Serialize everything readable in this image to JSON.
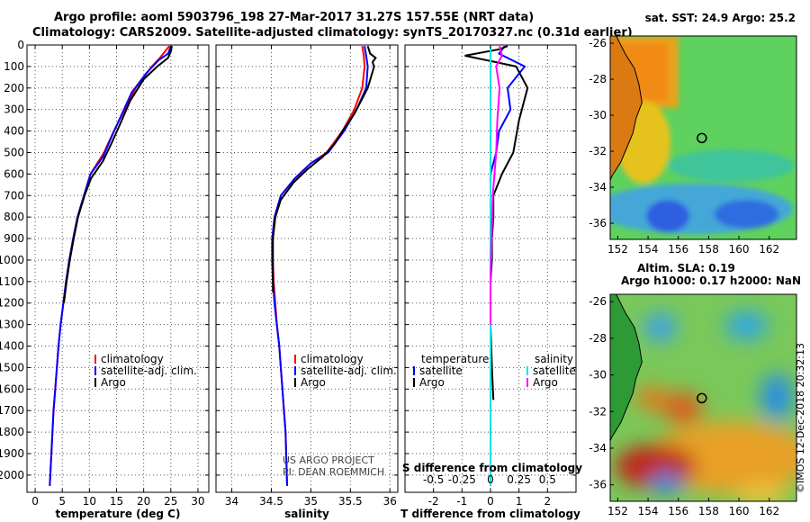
{
  "header": {
    "title_line1": "Argo profile: aoml 5903796_198 27-Mar-2017 31.27S 157.55E (NRT data)",
    "title_line2": "Climatology: CARS2009. Satellite-adjusted climatology: synTS_20170327.nc (0.31d earlier)"
  },
  "colors": {
    "climatology": "#ff0000",
    "satellite": "#0000ff",
    "argo": "#000000",
    "s_satellite": "#00e5e5",
    "s_argo": "#ff00ff"
  },
  "chart_data": [
    {
      "type": "line",
      "xlabel": "temperature (deg C)",
      "ylabel": "",
      "xlim": [
        -1.5,
        32
      ],
      "ylim": [
        2080,
        0
      ],
      "xticks": [
        0,
        5,
        10,
        15,
        20,
        25,
        30
      ],
      "yticks": [
        0,
        100,
        200,
        300,
        400,
        500,
        600,
        700,
        800,
        900,
        1000,
        1100,
        1200,
        1300,
        1400,
        1500,
        1600,
        1700,
        1800,
        1900,
        2000
      ],
      "legend": [
        "climatology",
        "satellite-adj. clim.",
        "Argo"
      ],
      "series": [
        {
          "name": "climatology",
          "color": "#ff0000",
          "x": [
            24.7,
            23.0,
            21.5,
            18.5,
            16.5,
            14.5,
            12.7,
            10.2,
            9.0,
            7.8,
            7.0,
            6.3,
            5.7,
            5.2,
            4.7,
            4.3,
            4.0,
            3.7,
            3.4,
            3.2,
            3.0,
            2.7
          ],
          "y": [
            5,
            60,
            100,
            200,
            300,
            400,
            500,
            600,
            700,
            800,
            900,
            1000,
            1100,
            1200,
            1300,
            1400,
            1500,
            1600,
            1700,
            1800,
            1900,
            2050
          ]
        },
        {
          "name": "satellite-adj. clim.",
          "color": "#0000ff",
          "x": [
            25.0,
            24.5,
            22.8,
            20.5,
            17.8,
            16.0,
            14.2,
            12.5,
            10.2,
            9.0,
            7.8,
            7.0,
            6.3,
            5.7,
            5.2,
            4.7,
            4.3,
            4.0,
            3.7,
            3.4,
            3.2,
            3.0,
            2.7
          ],
          "y": [
            5,
            40,
            70,
            130,
            220,
            320,
            420,
            520,
            600,
            700,
            800,
            900,
            1000,
            1100,
            1200,
            1300,
            1400,
            1500,
            1600,
            1700,
            1800,
            1900,
            2050
          ]
        },
        {
          "name": "Argo",
          "color": "#000000",
          "x": [
            25.2,
            25.0,
            24.5,
            22.5,
            20.0,
            17.5,
            15.8,
            14.2,
            12.5,
            10.3,
            9.1,
            7.9,
            7.1,
            6.4,
            5.8,
            5.3
          ],
          "y": [
            5,
            30,
            60,
            100,
            160,
            260,
            360,
            450,
            540,
            620,
            700,
            800,
            900,
            1000,
            1100,
            1200
          ]
        }
      ]
    },
    {
      "type": "line",
      "xlabel": "salinity",
      "ylabel": "",
      "xlim": [
        33.8,
        36.1
      ],
      "ylim": [
        2080,
        0
      ],
      "xticks": [
        34,
        34.5,
        35,
        35.5,
        36
      ],
      "legend": [
        "climatology",
        "satellite-adj. clim.",
        "Argo"
      ],
      "series": [
        {
          "name": "climatology",
          "color": "#ff0000",
          "x": [
            35.65,
            35.67,
            35.68,
            35.65,
            35.55,
            35.4,
            35.2,
            35.0,
            34.8,
            34.62,
            34.55,
            34.52,
            34.52,
            34.53,
            34.55,
            34.57,
            34.6,
            34.62,
            34.64,
            34.66,
            34.68,
            34.7
          ],
          "y": [
            5,
            50,
            100,
            200,
            300,
            400,
            500,
            550,
            620,
            700,
            800,
            900,
            1000,
            1100,
            1200,
            1300,
            1400,
            1500,
            1600,
            1700,
            1800,
            2050
          ]
        },
        {
          "name": "satellite-adj. clim.",
          "color": "#0000ff",
          "x": [
            35.68,
            35.7,
            35.72,
            35.7,
            35.58,
            35.42,
            35.22,
            35.0,
            34.8,
            34.62,
            34.54,
            34.51,
            34.51,
            34.52,
            34.54,
            34.57,
            34.6,
            34.62,
            34.64,
            34.66,
            34.68,
            34.7
          ],
          "y": [
            5,
            50,
            100,
            200,
            300,
            400,
            500,
            550,
            620,
            700,
            800,
            900,
            1000,
            1100,
            1200,
            1300,
            1400,
            1500,
            1600,
            1700,
            1800,
            2050
          ]
        },
        {
          "name": "Argo",
          "color": "#000000",
          "x": [
            35.72,
            35.75,
            35.82,
            35.78,
            35.8,
            35.72,
            35.55,
            35.4,
            35.3,
            35.15,
            34.95,
            34.78,
            34.62,
            34.55,
            34.52,
            34.52,
            34.52
          ],
          "y": [
            5,
            40,
            60,
            80,
            100,
            200,
            320,
            400,
            460,
            520,
            580,
            640,
            720,
            800,
            900,
            1000,
            1150
          ]
        }
      ]
    },
    {
      "type": "line",
      "xlabel": "T difference from climatology",
      "ylabel": "",
      "xlim": [
        -3,
        3
      ],
      "ylim": [
        2080,
        0
      ],
      "xticks": [
        -2,
        -1,
        0,
        1,
        2
      ],
      "secondary_xlabel": "S difference from climatology",
      "secondary_xticks": [
        -0.5,
        -0.25,
        0,
        0.25,
        0.5
      ],
      "legend_temperature": {
        "title": "temperature",
        "items": [
          "satellite",
          "Argo"
        ]
      },
      "legend_salinity": {
        "title": "salinity",
        "items": [
          "satellite",
          "Argo"
        ]
      },
      "series": [
        {
          "name": "temperature satellite",
          "color": "#0000ff",
          "x": [
            0.5,
            0.3,
            1.2,
            0.6,
            0.7,
            0.3,
            0.2,
            0.0,
            0.0,
            0.0,
            0.0,
            0.0,
            0.0,
            0.0,
            0.0,
            0.0,
            0.0,
            0.0,
            0.0
          ],
          "y": [
            5,
            40,
            100,
            200,
            300,
            400,
            500,
            600,
            700,
            800,
            900,
            1000,
            1100,
            1200,
            1300,
            1400,
            1500,
            1600,
            2050
          ]
        },
        {
          "name": "temperature Argo",
          "color": "#000000",
          "x": [
            0.6,
            0.3,
            -0.9,
            0.2,
            0.9,
            1.3,
            1.0,
            0.8,
            0.4,
            0.1,
            0.1,
            0.05,
            0.05,
            0.0,
            0.0,
            0.0,
            0.05,
            0.1
          ],
          "y": [
            5,
            20,
            50,
            80,
            100,
            200,
            350,
            500,
            600,
            700,
            800,
            900,
            1000,
            1100,
            1200,
            1300,
            1500,
            1650
          ]
        },
        {
          "name": "salinity satellite",
          "color": "#00e5e5",
          "x": [
            0.0,
            0.0,
            0.0,
            0.0,
            0.0,
            0.0,
            0.0,
            0.0,
            0.0
          ],
          "y": [
            5,
            100,
            300,
            600,
            900,
            1200,
            1500,
            1800,
            2050
          ]
        },
        {
          "name": "salinity Argo",
          "color": "#ff00ff",
          "x": [
            0.08,
            0.1,
            0.05,
            0.08,
            0.06,
            0.05,
            0.02,
            0.01,
            0.0,
            0.0,
            0.0
          ],
          "y": [
            5,
            50,
            100,
            200,
            350,
            500,
            700,
            900,
            1100,
            1200,
            1300
          ]
        }
      ]
    },
    {
      "type": "heatmap",
      "title": "sat. SST: 24.9 Argo: 25.2",
      "xticks": [
        152,
        154,
        156,
        158,
        160,
        162
      ],
      "yticks": [
        -26,
        -28,
        -30,
        -32,
        -34,
        -36
      ],
      "xlim": [
        151.5,
        163.8
      ],
      "ylim": [
        -36.9,
        -25.6
      ],
      "marker": {
        "lon": 157.55,
        "lat": -31.27
      }
    },
    {
      "type": "heatmap",
      "title_line1": "Altim. SLA: 0.19",
      "title_line2": "Argo h1000: 0.17 h2000: NaN",
      "xticks": [
        152,
        154,
        156,
        158,
        160,
        162
      ],
      "yticks": [
        -26,
        -28,
        -30,
        -32,
        -34,
        -36
      ],
      "xlim": [
        151.5,
        163.8
      ],
      "ylim": [
        -36.9,
        -25.6
      ],
      "marker": {
        "lon": 157.55,
        "lat": -31.27
      }
    }
  ],
  "annotations": {
    "project_line1": "US ARGO PROJECT",
    "project_line2": "PI: DEAN ROEMMICH",
    "watermark": "©IMOS 12-Dec-2018 20:32:13"
  }
}
